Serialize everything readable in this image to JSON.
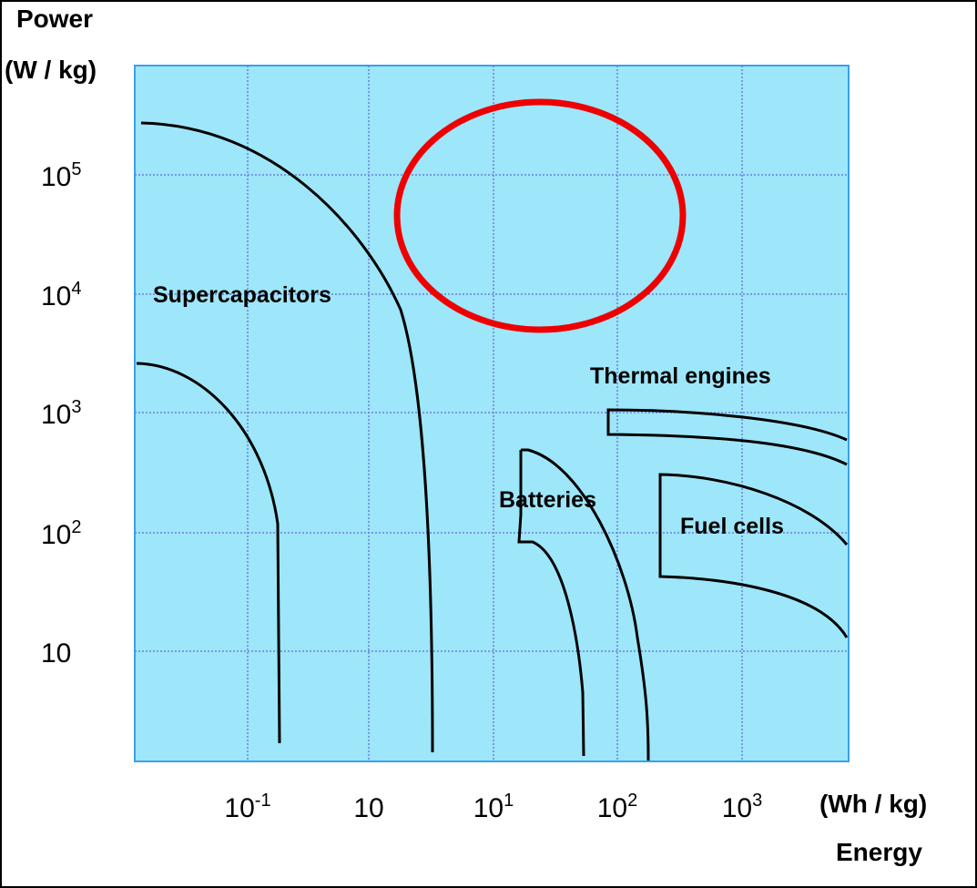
{
  "axes": {
    "y_title": {
      "line1": "Power",
      "line2": "(W / kg)"
    },
    "x_title": {
      "unit": "(Wh / kg)",
      "name": "Energy"
    },
    "y_ticks": [
      {
        "base": "10",
        "exp": "5"
      },
      {
        "base": "10",
        "exp": "4"
      },
      {
        "base": "10",
        "exp": "3"
      },
      {
        "base": "10",
        "exp": "2"
      },
      {
        "base": "10"
      }
    ],
    "x_ticks": [
      {
        "base": "10",
        "exp": "-1"
      },
      {
        "base": "10"
      },
      {
        "base": "10",
        "exp": "1"
      },
      {
        "base": "10",
        "exp": "2"
      },
      {
        "base": "10",
        "exp": "3"
      }
    ]
  },
  "regions": [
    {
      "label": "Supercapacitors"
    },
    {
      "label": "Thermal engines"
    },
    {
      "label": "Batteries"
    },
    {
      "label": "Fuel cells"
    }
  ]
}
